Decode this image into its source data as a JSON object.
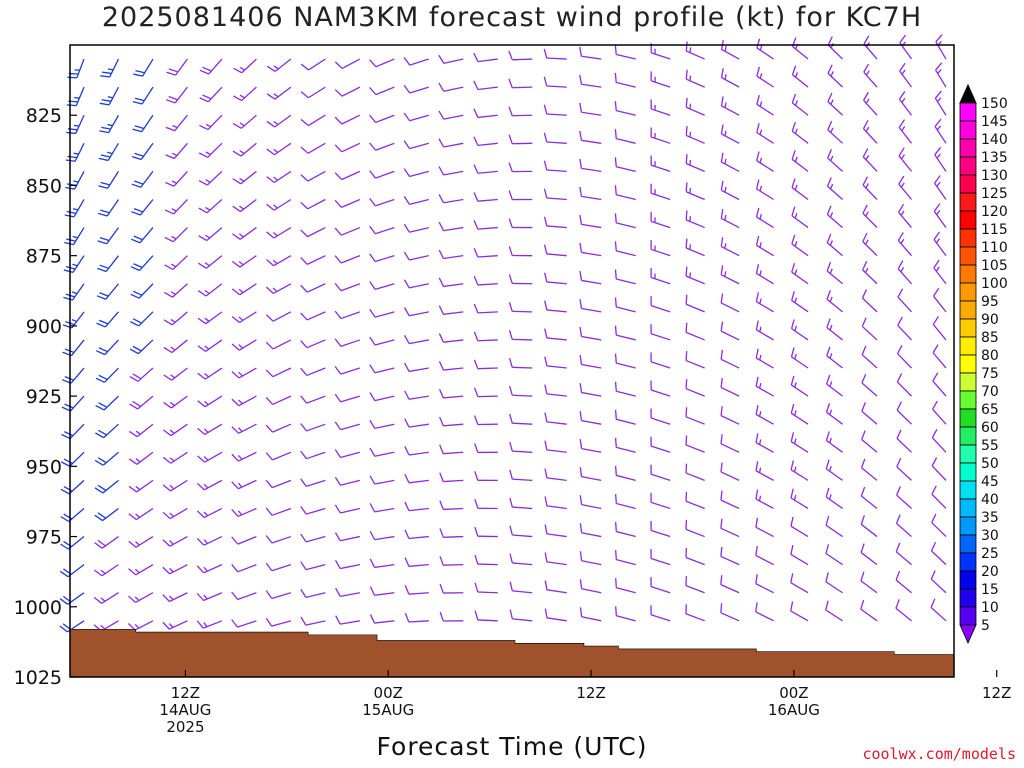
{
  "title": "2025081406 NAM3KM forecast wind profile (kt) for KC7H",
  "credit": "coolwx.com/models",
  "colors": {
    "terrain": "#a0522d",
    "barb_light": "#8a2be2",
    "barb_strong": "#1f3bd6",
    "frame": "#000000",
    "credit": "#e0192a"
  },
  "chart_data": {
    "type": "wind-profile",
    "title": "2025081406 NAM3KM forecast wind profile (kt) for KC7H",
    "xlabel": "Forecast Time (UTC)",
    "ylabel": "",
    "ylim": [
      1025,
      800
    ],
    "y_axis": "pressure (mb), inverted",
    "yticks": [
      "825",
      "850",
      "875",
      "900",
      "925",
      "950",
      "975",
      "1000",
      "1025"
    ],
    "xticks": [
      {
        "label": [
          "12Z",
          "14AUG",
          "2025"
        ]
      },
      {
        "label": [
          "00Z",
          "15AUG"
        ]
      },
      {
        "label": [
          "12Z"
        ]
      },
      {
        "label": [
          "00Z",
          "16AUG"
        ]
      },
      {
        "label": [
          "12Z"
        ]
      }
    ],
    "time_range_hours_from_run": [
      0,
      51
    ],
    "time_step_hours": 2,
    "pressure_levels_mb": [
      805,
      815,
      825,
      835,
      845,
      855,
      865,
      875,
      885,
      895,
      905,
      915,
      925,
      935,
      945,
      955,
      965,
      975,
      985,
      995,
      1005,
      1015
    ],
    "surface_pressure_mb": [
      1008,
      1008,
      1009,
      1009,
      1009,
      1009,
      1009,
      1010,
      1010,
      1012,
      1012,
      1012,
      1012,
      1013,
      1013,
      1014,
      1015,
      1015,
      1015,
      1015,
      1016,
      1016,
      1016,
      1016,
      1017,
      1017
    ],
    "wind_speed_kt_by_time": [
      22,
      20,
      18,
      15,
      15,
      14,
      12,
      10,
      10,
      10,
      10,
      10,
      10,
      10,
      10,
      10,
      10,
      12,
      12,
      12,
      14,
      14,
      14,
      12,
      12,
      12
    ],
    "colorbar": {
      "labels": [
        "150",
        "145",
        "140",
        "135",
        "130",
        "125",
        "120",
        "115",
        "110",
        "105",
        "100",
        "95",
        "90",
        "85",
        "80",
        "75",
        "70",
        "65",
        "60",
        "55",
        "50",
        "45",
        "40",
        "35",
        "30",
        "25",
        "20",
        "15",
        "10",
        "5"
      ],
      "colors": [
        "#ff00ff",
        "#ff00dd",
        "#ff00aa",
        "#ff0080",
        "#ff0050",
        "#ff1a1a",
        "#ff0000",
        "#ff3300",
        "#ff5500",
        "#ff7a00",
        "#ff9900",
        "#ffaa00",
        "#ffcc00",
        "#ffee00",
        "#ffff00",
        "#ccff33",
        "#66ff33",
        "#22dd22",
        "#22ee66",
        "#22ffaa",
        "#00ffcc",
        "#00e0ee",
        "#00bbff",
        "#0099ff",
        "#0066ff",
        "#0033ff",
        "#0000ee",
        "#2200ee",
        "#5500ee",
        "#8800ff"
      ]
    }
  }
}
